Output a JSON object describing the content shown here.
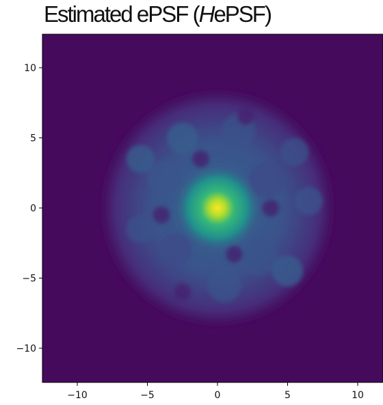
{
  "chart_data": {
    "type": "heatmap",
    "title_parts": [
      "Estimated ePSF (",
      "H",
      "ePSF)"
    ],
    "xlabel": "",
    "ylabel": "",
    "xlim": [
      -12.5,
      12.5
    ],
    "ylim": [
      -12.5,
      12.5
    ],
    "xticks": [
      -10,
      -5,
      0,
      5,
      10
    ],
    "yticks": [
      -10,
      -5,
      0,
      5,
      10
    ],
    "xtick_labels": [
      "−10",
      "−5",
      "0",
      "5",
      "10"
    ],
    "ytick_labels": [
      "−10",
      "−5",
      "0",
      "5",
      "10"
    ],
    "colormap": "viridis",
    "grid": false,
    "description_values": {
      "peak_center": [
        0,
        0
      ],
      "peak_level": 1.0,
      "core_radius": 2.5,
      "halo_outer_radius": 8.0,
      "halo_level": 0.3
    }
  }
}
